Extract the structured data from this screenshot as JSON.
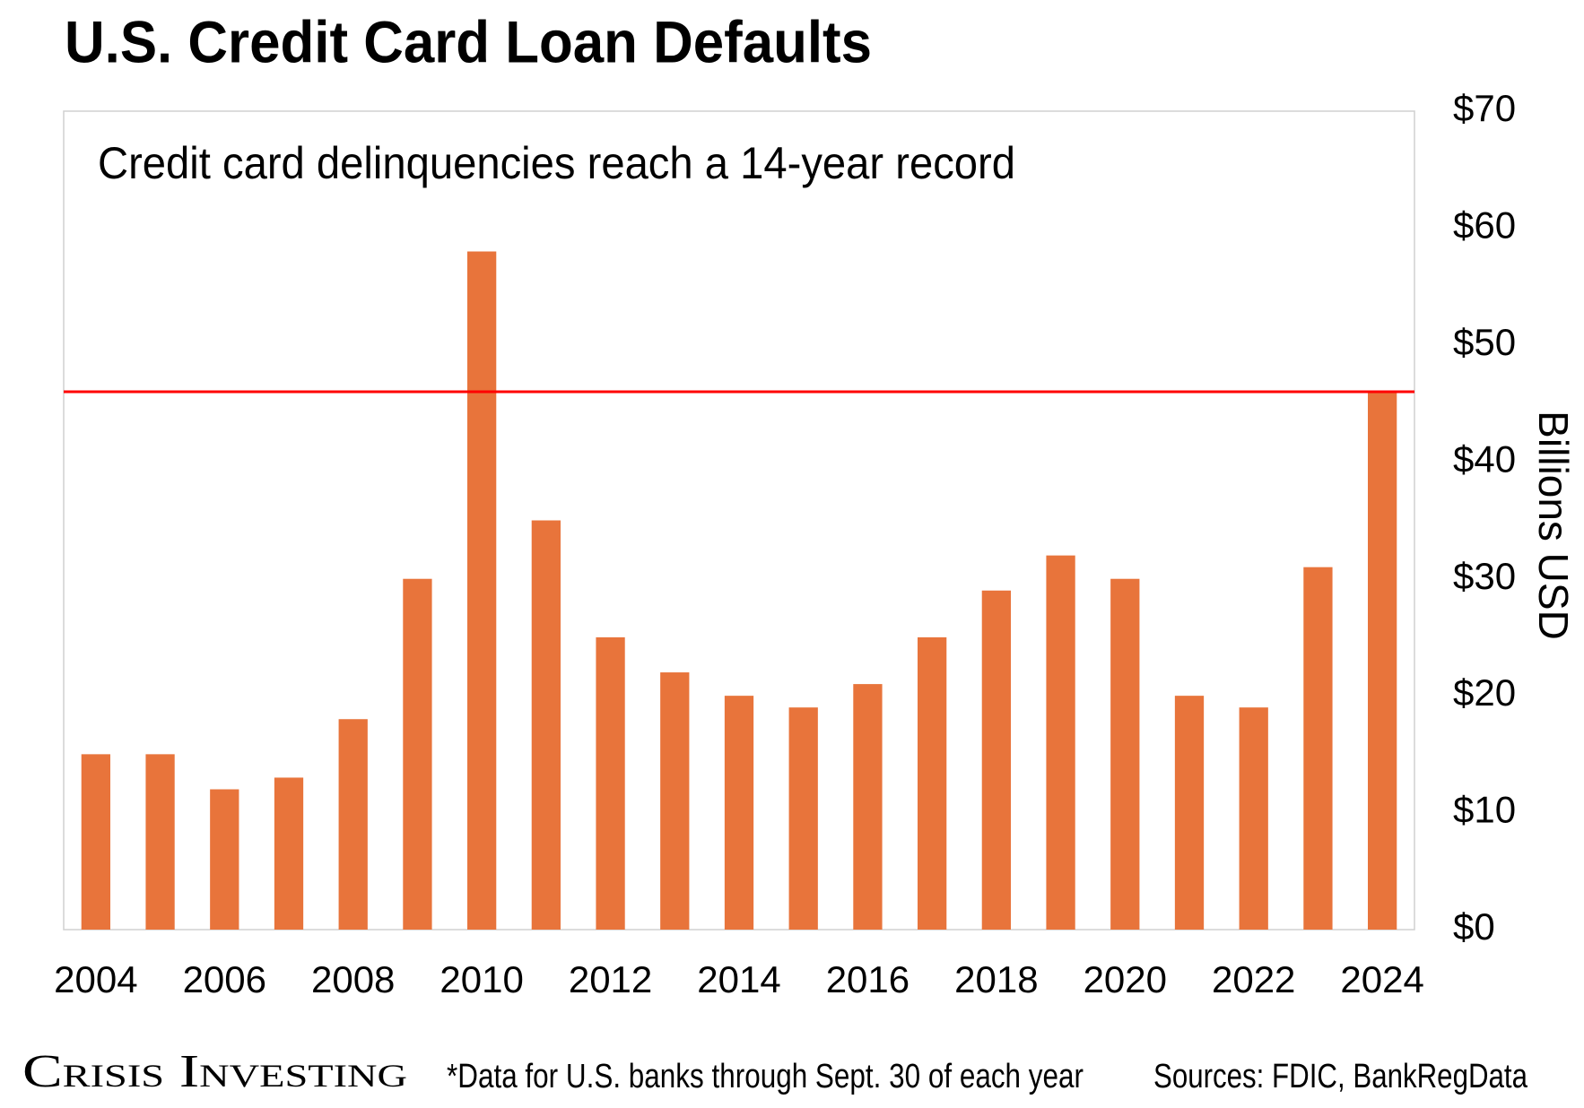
{
  "chart_data": {
    "type": "bar",
    "title": "U.S. Credit Card Loan Defaults",
    "subtitle": "Credit card delinquencies reach a 14-year record",
    "y_axis_label": "Billions USD",
    "categories": [
      "2004",
      null,
      "2006",
      null,
      "2008",
      null,
      "2010",
      null,
      "2012",
      null,
      "2014",
      null,
      "2016",
      null,
      "2018",
      null,
      "2020",
      null,
      "2022",
      null,
      "2024"
    ],
    "values": [
      15,
      15,
      12,
      13,
      18,
      30,
      58,
      35,
      25,
      22,
      20,
      19,
      21,
      25,
      29,
      32,
      30,
      20,
      19,
      31,
      46
    ],
    "color": "#e8743b",
    "reference_line": {
      "value": 46,
      "color": "#ff0000"
    },
    "ylim": [
      0,
      70
    ],
    "yticks": [
      {
        "value": 0,
        "label": "$0"
      },
      {
        "value": 10,
        "label": "$10"
      },
      {
        "value": 20,
        "label": "$20"
      },
      {
        "value": 30,
        "label": "$30"
      },
      {
        "value": 40,
        "label": "$40"
      },
      {
        "value": 50,
        "label": "$50"
      },
      {
        "value": 60,
        "label": "$60"
      },
      {
        "value": 70,
        "label": "$70"
      }
    ],
    "grid": false,
    "logo": "Crisis Investing",
    "footnote": "*Data for U.S. banks through Sept. 30 of each year",
    "source": "Sources: FDIC, BankRegData"
  }
}
